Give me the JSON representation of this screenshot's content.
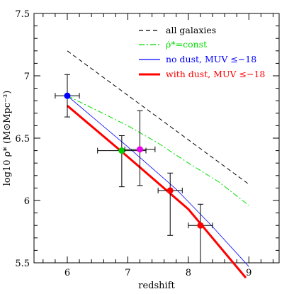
{
  "chart_data": {
    "type": "line",
    "xlabel": "redshift",
    "ylabel": "log10 ρ* (M⊙Mpc⁻³)",
    "xlim": [
      5.45,
      9.5
    ],
    "ylim": [
      5.5,
      7.5
    ],
    "x_ticks": [
      {
        "v": 6,
        "label": "6"
      },
      {
        "v": 7,
        "label": "7"
      },
      {
        "v": 8,
        "label": "8"
      },
      {
        "v": 9,
        "label": "9"
      }
    ],
    "y_ticks": [
      {
        "v": 5.5,
        "label": "5.5"
      },
      {
        "v": 6,
        "label": "6"
      },
      {
        "v": 6.5,
        "label": "6.5"
      },
      {
        "v": 7,
        "label": "7"
      },
      {
        "v": 7.5,
        "label": "7.5"
      }
    ],
    "grid": false,
    "legend_position": "top-right",
    "series": [
      {
        "name": "all galaxies",
        "style": "dashed",
        "color": "#000000",
        "x": [
          6,
          9
        ],
        "y": [
          7.2,
          6.13
        ]
      },
      {
        "name": "ρ̇*=const",
        "style": "dashdot",
        "color": "#00dd00",
        "x": [
          6,
          6.5,
          7,
          7.5,
          8,
          8.5,
          9
        ],
        "y": [
          6.84,
          6.72,
          6.6,
          6.46,
          6.3,
          6.15,
          5.96
        ]
      },
      {
        "name": "no dust, MUV ≤−18",
        "style": "solid",
        "color": "#0000ff",
        "x": [
          6,
          7,
          7.8,
          8.4,
          9
        ],
        "y": [
          6.84,
          6.43,
          6.09,
          5.79,
          5.47
        ]
      },
      {
        "name": "with dust, MUV ≤−18",
        "style": "solid-thick",
        "color": "#ff0000",
        "x": [
          6,
          7,
          8,
          8.95
        ],
        "y": [
          6.76,
          6.35,
          5.93,
          5.38
        ]
      }
    ],
    "points": [
      {
        "x": 6.0,
        "y": 6.84,
        "xerr": 0.2,
        "yerr_lo": 0.17,
        "yerr_hi": 0.17,
        "color": "#0000ff"
      },
      {
        "x": 6.9,
        "y": 6.4,
        "xerr": 0.4,
        "yerr_lo": 0.29,
        "yerr_hi": 0.12,
        "color": "#00cc00"
      },
      {
        "x": 7.2,
        "y": 6.41,
        "xerr": 0.25,
        "yerr_lo": 0.29,
        "yerr_hi": 0.31,
        "color": "#ee00ee"
      },
      {
        "x": 7.7,
        "y": 6.08,
        "xerr": 0.2,
        "yerr_lo": 0.36,
        "yerr_hi": 0.14,
        "color": "#ff0000"
      },
      {
        "x": 8.2,
        "y": 5.8,
        "xerr": 0.2,
        "yerr_lo": 0.3,
        "yerr_hi": 0.17,
        "color": "#ff0000"
      }
    ]
  }
}
